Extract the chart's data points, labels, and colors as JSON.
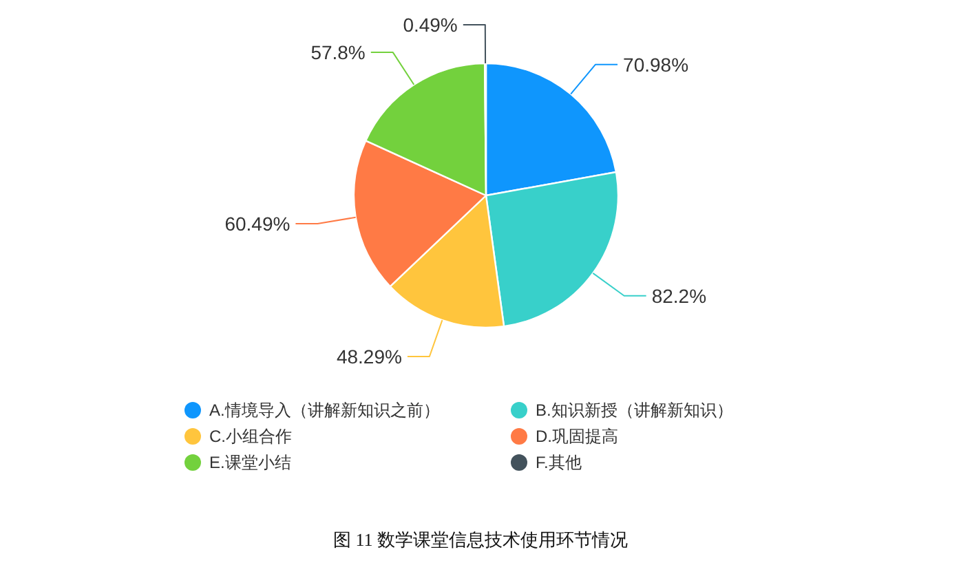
{
  "chart_data": {
    "type": "pie",
    "categories": [
      "A.情境导入（讲解新知识之前）",
      "B.知识新授（讲解新知识）",
      "C.小组合作",
      "D.巩固提高",
      "E.课堂小结",
      "F.其他"
    ],
    "values": [
      70.98,
      82.2,
      48.29,
      60.49,
      57.8,
      0.49
    ],
    "colors": [
      "#0f96fd",
      "#38d0ca",
      "#ffc53d",
      "#ff7a45",
      "#73d13d",
      "#43525c"
    ],
    "value_labels": [
      "70.98%",
      "82.2%",
      "48.29%",
      "60.49%",
      "57.8%",
      "0.49%"
    ],
    "legend": "bottom",
    "annotations": [
      "图 11 数学课堂信息技术使用环节情况"
    ]
  }
}
